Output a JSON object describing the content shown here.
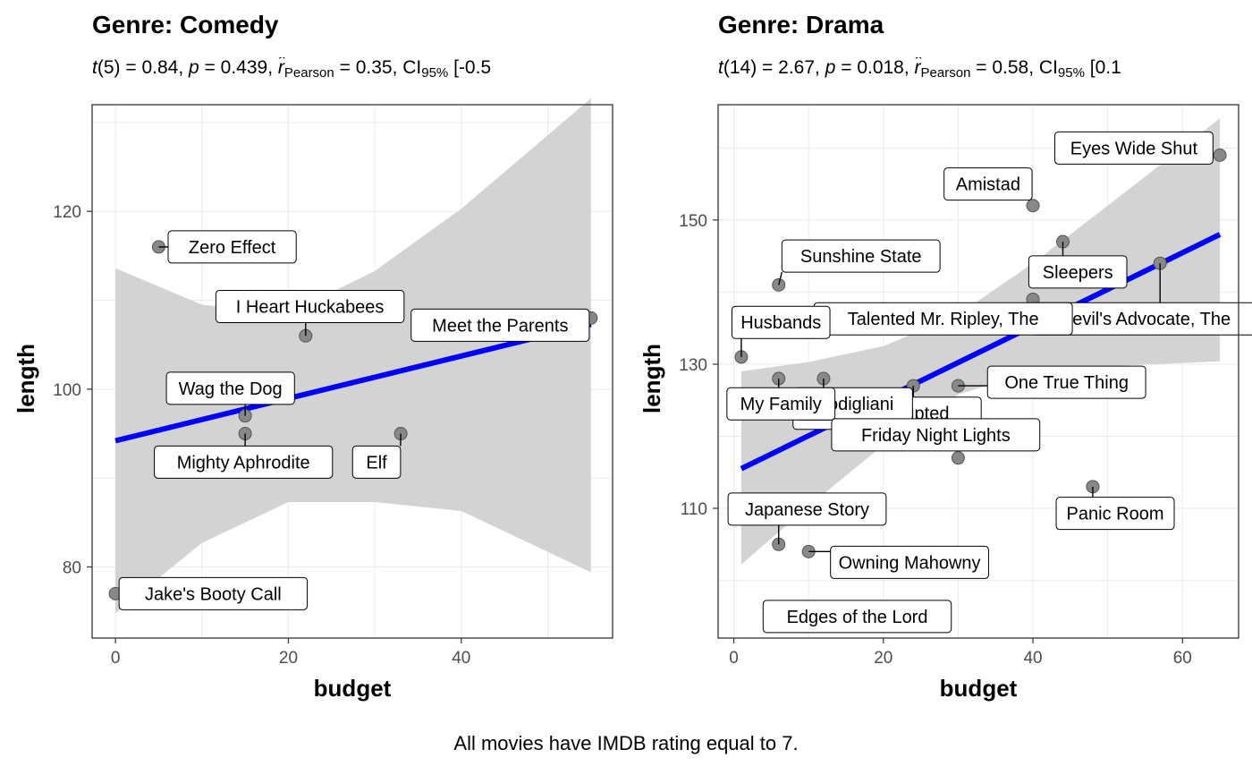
{
  "caption": "All movies have IMDB rating equal to 7.",
  "chart_data": [
    {
      "type": "scatter",
      "title": "Genre: Comedy",
      "subtitle": {
        "t_df": "5",
        "t_value": "0.84",
        "p_value": "0.439",
        "r_label": "Pearson",
        "r_value": "0.35",
        "ci_label": "95%",
        "ci_value": "[-0.5"
      },
      "xlabel": "budget",
      "ylabel": "length",
      "xlim": [
        -2.7,
        57.5
      ],
      "ylim": [
        72,
        132
      ],
      "xticks": [
        0,
        20,
        40
      ],
      "yticks": [
        80,
        100,
        120
      ],
      "grid": true,
      "point_color": "#888888",
      "line_color": "#0000ff",
      "band_color": "#d3d3d3",
      "fit": {
        "x0": 0,
        "y0": 94.2,
        "x1": 55,
        "y1": 107.3
      },
      "band": {
        "upper": [
          [
            0,
            113.6
          ],
          [
            10,
            109.5
          ],
          [
            20,
            108.5
          ],
          [
            30,
            113.3
          ],
          [
            40,
            120.3
          ],
          [
            55,
            132.7
          ]
        ],
        "lower": [
          [
            0,
            74.8
          ],
          [
            10,
            82.7
          ],
          [
            20,
            87.3
          ],
          [
            30,
            87.3
          ],
          [
            40,
            86.3
          ],
          [
            55,
            79.4
          ]
        ]
      },
      "points": [
        {
          "label": "Zero Effect",
          "x": 5,
          "y": 116,
          "lx": 13.5,
          "ly": 116
        },
        {
          "label": "I Heart Huckabees",
          "x": 22,
          "y": 106,
          "lx": 22.5,
          "ly": 109.3
        },
        {
          "label": "Meet the Parents",
          "x": 55,
          "y": 108,
          "lx": 44.5,
          "ly": 107.2
        },
        {
          "label": "Wag the Dog",
          "x": 15,
          "y": 97,
          "lx": 13.3,
          "ly": 100.1
        },
        {
          "label": "Mighty Aphrodite",
          "x": 15,
          "y": 95,
          "lx": 14.8,
          "ly": 91.8
        },
        {
          "label": "Elf",
          "x": 33,
          "y": 95,
          "lx": 30.2,
          "ly": 91.8
        },
        {
          "label": "Jake's Booty Call",
          "x": 0,
          "y": 77,
          "lx": 11.3,
          "ly": 77
        }
      ]
    },
    {
      "type": "scatter",
      "title": "Genre: Drama",
      "subtitle": {
        "t_df": "14",
        "t_value": "2.67",
        "p_value": "0.018",
        "r_label": "Pearson",
        "r_value": "0.58",
        "ci_label": "95%",
        "ci_value": "[0.1"
      },
      "xlabel": "budget",
      "ylabel": "length",
      "xlim": [
        -2.1,
        67.5
      ],
      "ylim": [
        92,
        166
      ],
      "xticks": [
        0,
        20,
        40,
        60
      ],
      "yticks": [
        110,
        130,
        150
      ],
      "grid": true,
      "point_color": "#888888",
      "line_color": "#0000ff",
      "band_color": "#d3d3d3",
      "fit": {
        "x0": 1,
        "y0": 115.5,
        "x1": 65,
        "y1": 148
      },
      "band": {
        "upper": [
          [
            1,
            129
          ],
          [
            10,
            130.3
          ],
          [
            20,
            132.5
          ],
          [
            30,
            136.9
          ],
          [
            40,
            144
          ],
          [
            50,
            152
          ],
          [
            65,
            164.1
          ]
        ],
        "lower": [
          [
            1,
            102.2
          ],
          [
            10,
            110.3
          ],
          [
            20,
            118.8
          ],
          [
            30,
            125.8
          ],
          [
            40,
            129
          ],
          [
            50,
            129.7
          ],
          [
            65,
            130.4
          ]
        ]
      },
      "points": [
        {
          "label": "Eyes Wide Shut",
          "x": 65,
          "y": 159,
          "lx": 53.5,
          "ly": 160
        },
        {
          "label": "Amistad",
          "x": 40,
          "y": 152,
          "lx": 34,
          "ly": 155
        },
        {
          "label": "Sunshine State",
          "x": 6,
          "y": 141,
          "lx": 17,
          "ly": 145
        },
        {
          "label": "Sleepers",
          "x": 44,
          "y": 147,
          "lx": 46,
          "ly": 142.8
        },
        {
          "label": "Devil's Advocate, The",
          "x": 57,
          "y": 144,
          "lx": 55,
          "ly": 136.3
        },
        {
          "label": "Talented Mr. Ripley, The",
          "x": 40,
          "y": 139,
          "lx": 28,
          "ly": 136.3
        },
        {
          "label": "Husbands",
          "x": 1,
          "y": 131,
          "lx": 6.3,
          "ly": 135.8
        },
        {
          "label": "One True Thing",
          "x": 30,
          "y": 127,
          "lx": 44.5,
          "ly": 127.5
        },
        {
          "label": "Girl, Interrupted",
          "x": 24,
          "y": 127,
          "lx": 20.5,
          "ly": 123.2
        },
        {
          "label": "Modigliani",
          "x": 12,
          "y": 128,
          "lx": 16,
          "ly": 124.5
        },
        {
          "label": "My Family",
          "x": 6,
          "y": 128,
          "lx": 6.3,
          "ly": 124.5
        },
        {
          "label": "Friday Night Lights",
          "x": 30,
          "y": 117,
          "lx": 27,
          "ly": 120.2
        },
        {
          "label": "Japanese Story",
          "x": 6,
          "y": 105,
          "lx": 9.8,
          "ly": 109.9
        },
        {
          "label": "Panic Room",
          "x": 48,
          "y": 113,
          "lx": 51,
          "ly": 109.3
        },
        {
          "label": "Owning Mahowny",
          "x": 10,
          "y": 104,
          "lx": 23.5,
          "ly": 102.5
        },
        {
          "label": "Edges of the Lord",
          "x": 14,
          "y": 96,
          "lx": 16.5,
          "ly": 95
        }
      ]
    }
  ]
}
